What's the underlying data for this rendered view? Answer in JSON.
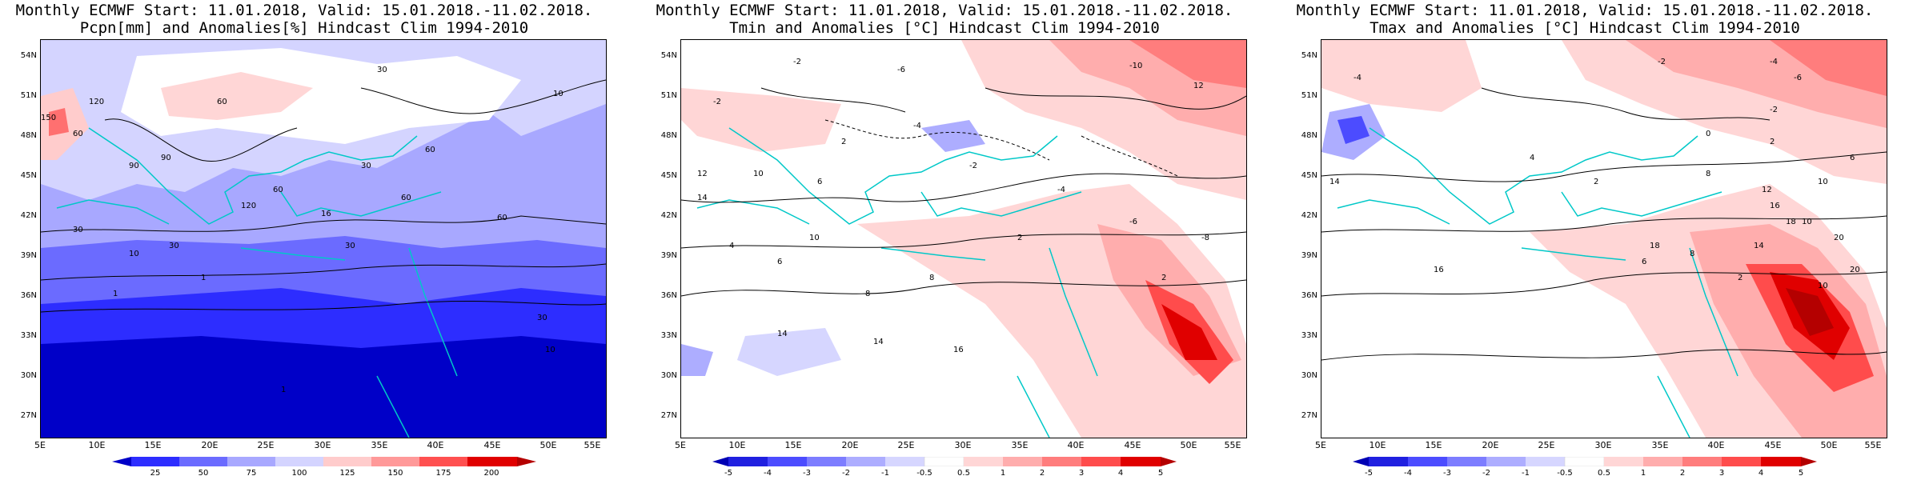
{
  "panels": [
    {
      "title1": "Monthly ECMWF Start: 11.01.2018, Valid: 15.01.2018.-11.02.2018.",
      "title2": "Pcpn[mm] and Anomalies[%] Hindcast Clim 1994-2010",
      "colorbar_labels": [
        "25",
        "50",
        "75",
        "100",
        "125",
        "150",
        "175",
        "200"
      ],
      "colorbar_colors": [
        "#0000c8",
        "#2d2dff",
        "#6b6bff",
        "#a8a8ff",
        "#d4d4ff",
        "#ffffff",
        "#ffcccc",
        "#ff9999",
        "#ff5050",
        "#dd0000"
      ],
      "contour_labels": [
        "30",
        "60",
        "90",
        "120",
        "150",
        "60",
        "90",
        "60",
        "30",
        "10",
        "30",
        "1",
        "10",
        "1",
        "16",
        "30",
        "60",
        "30",
        "1",
        "120",
        "60",
        "10",
        "30",
        "60"
      ]
    },
    {
      "title1": "Monthly ECMWF Start: 11.01.2018, Valid: 15.01.2018.-11.02.2018.",
      "title2": "Tmin and Anomalies [°C] Hindcast Clim 1994-2010",
      "colorbar_labels": [
        "-5",
        "-4",
        "-3",
        "-2",
        "-1",
        "-0.5",
        "0.5",
        "1",
        "2",
        "3",
        "4",
        "5"
      ],
      "colorbar_colors": [
        "#0000b4",
        "#2020e0",
        "#4c4cff",
        "#7d7dff",
        "#adadff",
        "#d6d6ff",
        "#ffffff",
        "#ffd6d6",
        "#ffadad",
        "#ff7d7d",
        "#ff4c4c",
        "#e00000",
        "#b40000"
      ],
      "contour_labels": [
        "-2",
        "-6",
        "-10",
        "-2",
        "-4",
        "2",
        "12",
        "10",
        "6",
        "14",
        "-2",
        "-4",
        "8",
        "2",
        "-6",
        "14",
        "4",
        "10",
        "12",
        "14",
        "16",
        "6",
        "8",
        "2",
        "-8"
      ]
    },
    {
      "title1": "Monthly ECMWF Start: 11.01.2018, Valid: 15.01.2018.-11.02.2018.",
      "title2": "Tmax and Anomalies [°C] Hindcast Clim 1994-2010",
      "colorbar_labels": [
        "-5",
        "-4",
        "-3",
        "-2",
        "-1",
        "-0.5",
        "0.5",
        "1",
        "2",
        "3",
        "4",
        "5"
      ],
      "colorbar_colors": [
        "#0000b4",
        "#2020e0",
        "#4c4cff",
        "#7d7dff",
        "#adadff",
        "#d6d6ff",
        "#ffffff",
        "#ffd6d6",
        "#ffadad",
        "#ff7d7d",
        "#ff4c4c",
        "#e00000",
        "#b40000"
      ],
      "contour_labels": [
        "-4",
        "-2",
        "-6",
        "-4",
        "-2",
        "0",
        "2",
        "4",
        "6",
        "2",
        "8",
        "10",
        "14",
        "12",
        "16",
        "18",
        "10",
        "20",
        "16",
        "18",
        "2",
        "20",
        "10",
        "8",
        "14",
        "6"
      ]
    }
  ],
  "lat_labels": [
    "54N",
    "51N",
    "48N",
    "45N",
    "42N",
    "39N",
    "36N",
    "33N",
    "30N",
    "27N"
  ],
  "lon_labels": [
    "5E",
    "10E",
    "15E",
    "20E",
    "25E",
    "30E",
    "35E",
    "40E",
    "45E",
    "50E",
    "55E"
  ],
  "colors": {
    "coast": "#00c8c8",
    "contour": "#000000"
  }
}
